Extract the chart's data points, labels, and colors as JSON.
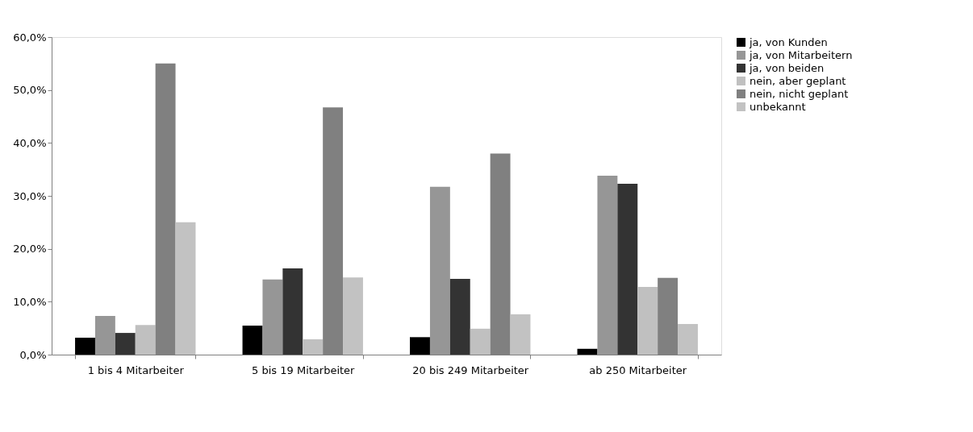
{
  "chart_data": {
    "type": "bar",
    "categories": [
      "1 bis 4 Mitarbeiter",
      "5 bis 19 Mitarbeiter",
      "20 bis 249 Mitarbeiter",
      "ab 250 Mitarbeiter"
    ],
    "series": [
      {
        "name": "ja, von Kunden",
        "color": "#000000",
        "values": [
          3.2,
          5.5,
          3.3,
          1.1
        ]
      },
      {
        "name": "ja, von Mitarbeitern",
        "color": "#969696",
        "values": [
          7.3,
          14.2,
          31.7,
          33.8
        ]
      },
      {
        "name": "ja, von beiden",
        "color": "#333333",
        "values": [
          4.1,
          16.3,
          14.3,
          32.3
        ]
      },
      {
        "name": "nein, aber geplant",
        "color": "#c0c0c0",
        "values": [
          5.6,
          2.9,
          4.9,
          12.8
        ]
      },
      {
        "name": "nein, nicht geplant",
        "color": "#808080",
        "values": [
          55.0,
          46.7,
          38.0,
          14.5
        ]
      },
      {
        "name": "unbekannt",
        "color": "#c2c2c2",
        "values": [
          25.0,
          14.6,
          7.6,
          5.8
        ]
      }
    ],
    "ylim": [
      0,
      60
    ],
    "yticks": [
      {
        "value": 0,
        "label": "0,0%"
      },
      {
        "value": 10,
        "label": "10,0%"
      },
      {
        "value": 20,
        "label": "20,0%"
      },
      {
        "value": 30,
        "label": "30,0%"
      },
      {
        "value": 40,
        "label": "40,0%"
      },
      {
        "value": 50,
        "label": "50,0%"
      },
      {
        "value": 60,
        "label": "60,0%"
      }
    ],
    "grid": false,
    "legend": "right"
  }
}
